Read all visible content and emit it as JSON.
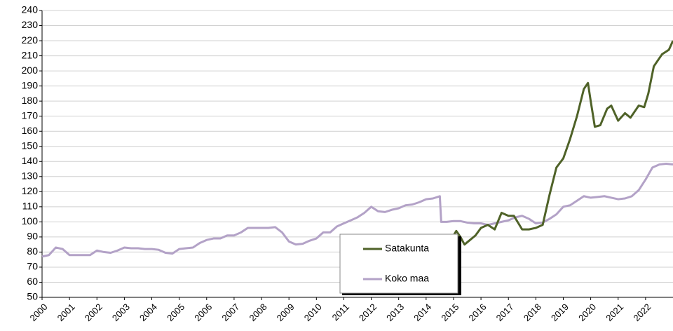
{
  "chart_data": {
    "type": "line",
    "xlim": [
      2000,
      2023
    ],
    "xticks": [
      2000,
      2001,
      2002,
      2003,
      2004,
      2005,
      2006,
      2007,
      2008,
      2009,
      2010,
      2011,
      2012,
      2013,
      2014,
      2015,
      2016,
      2017,
      2018,
      2019,
      2020,
      2021,
      2022
    ],
    "ylim": [
      50,
      240
    ],
    "yticks": [
      50,
      60,
      70,
      80,
      90,
      100,
      110,
      120,
      130,
      140,
      150,
      160,
      170,
      180,
      190,
      200,
      210,
      220,
      230,
      240
    ],
    "grid": true,
    "legend": "bottom-center",
    "series": [
      {
        "name": "Satakunta",
        "color": "#4f6228",
        "x": [
          2015,
          2015.1,
          2015.25,
          2015.4,
          2015.6,
          2015.8,
          2016,
          2016.25,
          2016.5,
          2016.75,
          2017,
          2017.2,
          2017.5,
          2017.75,
          2018,
          2018.25,
          2018.5,
          2018.75,
          2019,
          2019.25,
          2019.5,
          2019.75,
          2019.9,
          2020,
          2020.15,
          2020.35,
          2020.6,
          2020.75,
          2021,
          2021.25,
          2021.45,
          2021.75,
          2021.95,
          2022.1,
          2022.3,
          2022.6,
          2022.85,
          2023
        ],
        "values": [
          91,
          94,
          90,
          85,
          88,
          91,
          96,
          98,
          95,
          106,
          104,
          104,
          95,
          95,
          96,
          98,
          118,
          136,
          142,
          155,
          170,
          188,
          192,
          180,
          163,
          164,
          175,
          177,
          167,
          172,
          169,
          177,
          176,
          185,
          203,
          211,
          214,
          220
        ]
      },
      {
        "name": "Koko maa",
        "color": "#b3a2c7",
        "x": [
          2000,
          2000.25,
          2000.5,
          2000.75,
          2001,
          2001.25,
          2001.5,
          2001.75,
          2002,
          2002.25,
          2002.5,
          2002.75,
          2003,
          2003.25,
          2003.5,
          2003.75,
          2004,
          2004.25,
          2004.5,
          2004.75,
          2005,
          2005.25,
          2005.5,
          2005.75,
          2006,
          2006.25,
          2006.5,
          2006.75,
          2007,
          2007.25,
          2007.5,
          2007.75,
          2008,
          2008.25,
          2008.5,
          2008.75,
          2009,
          2009.25,
          2009.5,
          2009.75,
          2010,
          2010.25,
          2010.5,
          2010.75,
          2011,
          2011.25,
          2011.5,
          2011.75,
          2012,
          2012.25,
          2012.5,
          2012.75,
          2013,
          2013.25,
          2013.5,
          2013.75,
          2014,
          2014.25,
          2014.5,
          2014.55,
          2014.75,
          2015,
          2015.25,
          2015.5,
          2015.75,
          2016,
          2016.25,
          2016.5,
          2016.75,
          2017,
          2017.25,
          2017.5,
          2017.75,
          2018,
          2018.25,
          2018.5,
          2018.75,
          2019,
          2019.25,
          2019.5,
          2019.75,
          2020,
          2020.25,
          2020.5,
          2020.75,
          2021,
          2021.25,
          2021.5,
          2021.75,
          2022,
          2022.25,
          2022.5,
          2022.75,
          2023
        ],
        "values": [
          77,
          78,
          83,
          82,
          78,
          78,
          78,
          78,
          81,
          80,
          79.5,
          81,
          83,
          82.5,
          82.5,
          82,
          82,
          81.5,
          79.5,
          79,
          82,
          82.5,
          83,
          86,
          88,
          89,
          89,
          91,
          91,
          93,
          96,
          96,
          96,
          96,
          96.5,
          93,
          87,
          85,
          85.5,
          87.5,
          89,
          93,
          93,
          97,
          99,
          101,
          103,
          106,
          110,
          107,
          106.5,
          108,
          109,
          111,
          111.5,
          113,
          115,
          115.5,
          117,
          100,
          100,
          100.5,
          100.5,
          99.5,
          99,
          99,
          98,
          99,
          100,
          101,
          103,
          104,
          102,
          99,
          99.5,
          102,
          105,
          110,
          111,
          114,
          117,
          116,
          116.5,
          117,
          116,
          115,
          115.5,
          117,
          121,
          128,
          136,
          138,
          138.5,
          138
        ]
      }
    ]
  }
}
